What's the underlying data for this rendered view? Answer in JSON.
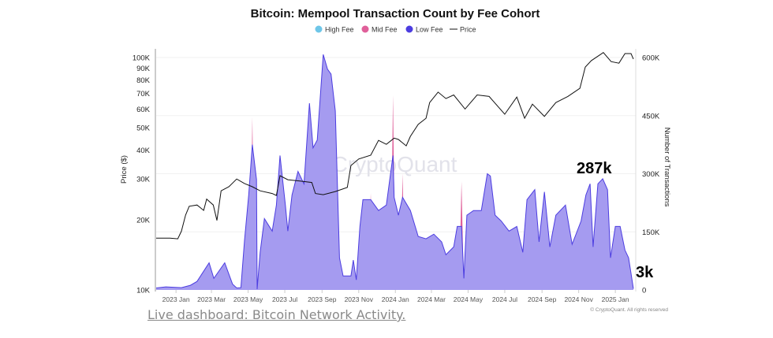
{
  "chart_data": {
    "type": "area",
    "title": "Bitcoin: Mempool Transaction Count by Fee Cohort",
    "legend": [
      {
        "label": "High Fee",
        "color": "#6ec6e8",
        "marker": "dot"
      },
      {
        "label": "Mid Fee",
        "color": "#e0609a",
        "marker": "dot"
      },
      {
        "label": "Low Fee",
        "color": "#4c3de0",
        "marker": "dot"
      },
      {
        "label": "Price",
        "color": "#111111",
        "marker": "line"
      }
    ],
    "legend_position": "top-center",
    "ylabel_left": "Price ($)",
    "ylabel_right": "Number of Transactions",
    "y_left_scale": "log",
    "y_left_range": [
      10000,
      100000
    ],
    "y_left_ticks": [
      "10K",
      "20K",
      "30K",
      "40K",
      "50K",
      "60K",
      "70K",
      "80K",
      "90K",
      "100K"
    ],
    "y_right_range": [
      0,
      600000
    ],
    "y_right_ticks": [
      "0",
      "150K",
      "300K",
      "450K",
      "600K"
    ],
    "x_range": [
      "2022-11-29",
      "2025-01-31"
    ],
    "x_ticks": [
      "2023 Jan",
      "2023 Mar",
      "2023 May",
      "2023 Jul",
      "2023 Sep",
      "2023 Nov",
      "2024 Jan",
      "2024 Mar",
      "2024 May",
      "2024 Jul",
      "2024 Sep",
      "2024 Nov",
      "2025 Jan"
    ],
    "grid": "horizontal",
    "annotations": [
      {
        "text": "287k",
        "date": "2024-12-11",
        "value": 287000
      },
      {
        "text": "3k",
        "date": "2025-01-31",
        "value": 3000
      }
    ],
    "watermark": "CryptoQuant",
    "copyright": "© CryptoQuant. All rights reserved",
    "series": [
      {
        "name": "Low Fee",
        "axis": "right",
        "fill": "#a59bf0",
        "stroke": "#4c3de0",
        "points": [
          [
            "2022-11-29",
            5000
          ],
          [
            "2022-12-15",
            8000
          ],
          [
            "2023-01-10",
            6000
          ],
          [
            "2023-01-25",
            12000
          ],
          [
            "2023-02-05",
            22000
          ],
          [
            "2023-02-25",
            70000
          ],
          [
            "2023-03-05",
            30000
          ],
          [
            "2023-03-23",
            70000
          ],
          [
            "2023-04-05",
            15000
          ],
          [
            "2023-04-12",
            5000
          ],
          [
            "2023-04-19",
            6000
          ],
          [
            "2023-04-25",
            128000
          ],
          [
            "2023-05-02",
            245000
          ],
          [
            "2023-05-08",
            375000
          ],
          [
            "2023-05-15",
            285000
          ],
          [
            "2023-05-16",
            2000
          ],
          [
            "2023-05-21",
            97000
          ],
          [
            "2023-05-28",
            184000
          ],
          [
            "2023-06-10",
            152000
          ],
          [
            "2023-06-17",
            219000
          ],
          [
            "2023-06-23",
            347000
          ],
          [
            "2023-07-02",
            219000
          ],
          [
            "2023-07-06",
            152000
          ],
          [
            "2023-07-13",
            245000
          ],
          [
            "2023-07-23",
            306000
          ],
          [
            "2023-08-02",
            274000
          ],
          [
            "2023-08-11",
            482000
          ],
          [
            "2023-08-17",
            367000
          ],
          [
            "2023-08-24",
            387000
          ],
          [
            "2023-09-03",
            608000
          ],
          [
            "2023-09-10",
            570000
          ],
          [
            "2023-09-16",
            557000
          ],
          [
            "2023-09-23",
            462000
          ],
          [
            "2023-09-30",
            83000
          ],
          [
            "2023-10-06",
            36000
          ],
          [
            "2023-10-19",
            36000
          ],
          [
            "2023-10-23",
            77000
          ],
          [
            "2023-10-28",
            26000
          ],
          [
            "2023-11-03",
            164000
          ],
          [
            "2023-11-08",
            233000
          ],
          [
            "2023-11-21",
            233000
          ],
          [
            "2023-12-04",
            205000
          ],
          [
            "2023-12-17",
            219000
          ],
          [
            "2023-12-28",
            347000
          ],
          [
            "2023-12-30",
            239000
          ],
          [
            "2024-01-06",
            193000
          ],
          [
            "2024-01-13",
            239000
          ],
          [
            "2024-01-26",
            205000
          ],
          [
            "2024-02-08",
            138000
          ],
          [
            "2024-02-21",
            132000
          ],
          [
            "2024-03-05",
            144000
          ],
          [
            "2024-03-18",
            124000
          ],
          [
            "2024-03-25",
            91000
          ],
          [
            "2024-04-07",
            111000
          ],
          [
            "2024-04-13",
            164000
          ],
          [
            "2024-04-20",
            164000
          ],
          [
            "2024-04-24",
            30000
          ],
          [
            "2024-04-29",
            193000
          ],
          [
            "2024-05-10",
            205000
          ],
          [
            "2024-05-23",
            205000
          ],
          [
            "2024-06-02",
            300000
          ],
          [
            "2024-06-07",
            294000
          ],
          [
            "2024-06-15",
            193000
          ],
          [
            "2024-06-25",
            178000
          ],
          [
            "2024-07-08",
            152000
          ],
          [
            "2024-07-21",
            164000
          ],
          [
            "2024-07-31",
            97000
          ],
          [
            "2024-08-07",
            233000
          ],
          [
            "2024-08-20",
            259000
          ],
          [
            "2024-08-27",
            124000
          ],
          [
            "2024-09-05",
            253000
          ],
          [
            "2024-09-14",
            111000
          ],
          [
            "2024-09-24",
            193000
          ],
          [
            "2024-10-10",
            219000
          ],
          [
            "2024-10-21",
            118000
          ],
          [
            "2024-11-05",
            178000
          ],
          [
            "2024-11-13",
            245000
          ],
          [
            "2024-11-20",
            274000
          ],
          [
            "2024-11-25",
            111000
          ],
          [
            "2024-12-03",
            274000
          ],
          [
            "2024-12-11",
            287000
          ],
          [
            "2024-12-19",
            259000
          ],
          [
            "2024-12-24",
            83000
          ],
          [
            "2025-01-01",
            164000
          ],
          [
            "2025-01-09",
            164000
          ],
          [
            "2025-01-17",
            103000
          ],
          [
            "2025-01-23",
            83000
          ],
          [
            "2025-01-27",
            43000
          ],
          [
            "2025-01-31",
            3000
          ]
        ]
      },
      {
        "name": "Mid Fee",
        "axis": "right",
        "fill": "#e0609a",
        "spikes": [
          [
            "2023-05-08",
            446000
          ],
          [
            "2023-11-21",
            250000
          ],
          [
            "2023-12-28",
            503000
          ],
          [
            "2024-01-13",
            300000
          ],
          [
            "2024-04-20",
            280000
          ]
        ]
      },
      {
        "name": "Price",
        "axis": "left",
        "stroke": "#111111",
        "points": [
          [
            "2022-11-29",
            16700
          ],
          [
            "2022-12-22",
            16700
          ],
          [
            "2023-01-04",
            16600
          ],
          [
            "2023-01-10",
            17900
          ],
          [
            "2023-01-17",
            21000
          ],
          [
            "2023-01-23",
            22900
          ],
          [
            "2023-02-05",
            23200
          ],
          [
            "2023-02-16",
            22000
          ],
          [
            "2023-02-21",
            24600
          ],
          [
            "2023-03-04",
            23200
          ],
          [
            "2023-03-10",
            19900
          ],
          [
            "2023-03-17",
            26700
          ],
          [
            "2023-03-30",
            27800
          ],
          [
            "2023-04-12",
            30000
          ],
          [
            "2023-04-25",
            28700
          ],
          [
            "2023-05-08",
            27800
          ],
          [
            "2023-05-21",
            26700
          ],
          [
            "2023-06-10",
            26000
          ],
          [
            "2023-06-17",
            25500
          ],
          [
            "2023-06-23",
            31000
          ],
          [
            "2023-07-06",
            29800
          ],
          [
            "2023-07-26",
            29400
          ],
          [
            "2023-08-15",
            29000
          ],
          [
            "2023-08-21",
            26000
          ],
          [
            "2023-09-03",
            25700
          ],
          [
            "2023-09-23",
            26500
          ],
          [
            "2023-10-13",
            27600
          ],
          [
            "2023-10-19",
            34300
          ],
          [
            "2023-11-01",
            36600
          ],
          [
            "2023-11-21",
            38000
          ],
          [
            "2023-12-04",
            44000
          ],
          [
            "2023-12-17",
            42300
          ],
          [
            "2023-12-30",
            45000
          ],
          [
            "2024-01-06",
            44400
          ],
          [
            "2024-01-19",
            41700
          ],
          [
            "2024-01-26",
            45800
          ],
          [
            "2024-02-08",
            51600
          ],
          [
            "2024-02-21",
            54800
          ],
          [
            "2024-02-27",
            64000
          ],
          [
            "2024-03-12",
            71000
          ],
          [
            "2024-03-25",
            66600
          ],
          [
            "2024-04-07",
            69000
          ],
          [
            "2024-04-26",
            60000
          ],
          [
            "2024-05-16",
            69000
          ],
          [
            "2024-06-05",
            68000
          ],
          [
            "2024-07-01",
            57000
          ],
          [
            "2024-07-21",
            67600
          ],
          [
            "2024-08-03",
            54800
          ],
          [
            "2024-08-16",
            63000
          ],
          [
            "2024-09-05",
            55800
          ],
          [
            "2024-09-24",
            64000
          ],
          [
            "2024-10-14",
            68000
          ],
          [
            "2024-11-03",
            73700
          ],
          [
            "2024-11-12",
            91000
          ],
          [
            "2024-11-22",
            97000
          ],
          [
            "2024-12-12",
            105000
          ],
          [
            "2024-12-25",
            96000
          ],
          [
            "2025-01-07",
            94500
          ],
          [
            "2025-01-17",
            104000
          ],
          [
            "2025-01-27",
            104000
          ],
          [
            "2025-01-31",
            98500
          ]
        ]
      }
    ]
  },
  "footer": {
    "link_text": "Live dashboard: Bitcoin Network Activity."
  }
}
